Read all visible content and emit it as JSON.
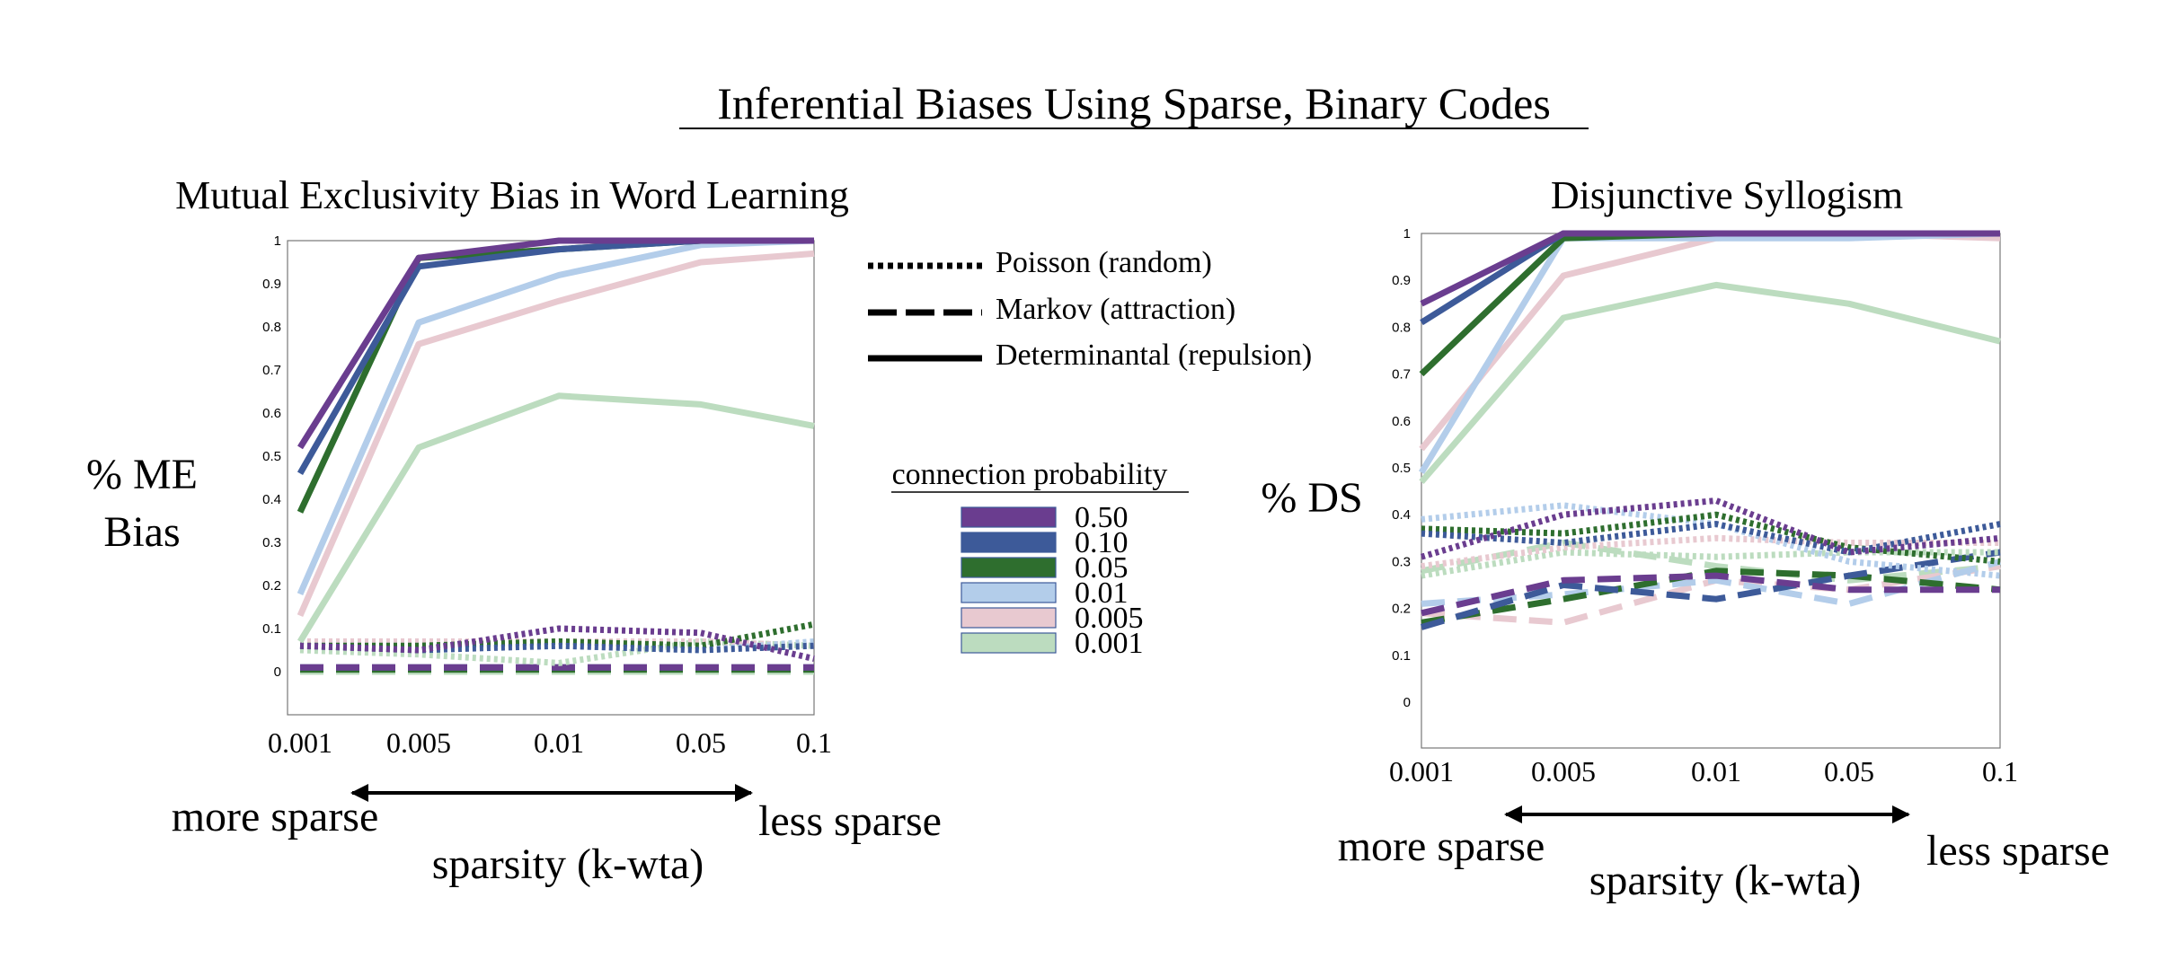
{
  "main_title": "Inferential Biases Using Sparse, Binary Codes",
  "style_legend": [
    {
      "label": "Poisson (random)",
      "dash": "dotted"
    },
    {
      "label": "Markov (attraction)",
      "dash": "dashed"
    },
    {
      "label": "Determinantal (repulsion)",
      "dash": "solid"
    }
  ],
  "color_legend": {
    "title": "connection probability",
    "items": [
      {
        "label": "0.50",
        "color": "#6a3d8f"
      },
      {
        "label": "0.10",
        "color": "#3d5a99"
      },
      {
        "label": "0.05",
        "color": "#2e6e2e"
      },
      {
        "label": "0.01",
        "color": "#b3cdea"
      },
      {
        "label": "0.005",
        "color": "#e8c9d0"
      },
      {
        "label": "0.001",
        "color": "#bcdcbf"
      }
    ]
  },
  "arrow_labels": {
    "left": "more sparse",
    "right": "less sparse"
  },
  "chart_data": [
    {
      "type": "line",
      "title": "Mutual Exclusivity Bias in Word Learning",
      "ylabel_lines": [
        "% ME",
        "Bias"
      ],
      "xlabel": "sparsity (k-wta)",
      "categories": [
        "0.001",
        "0.005",
        "0.01",
        "0.05",
        "0.1"
      ],
      "yticks": [
        "0",
        "0.1",
        "0.2",
        "0.3",
        "0.4",
        "0.5",
        "0.6",
        "0.7",
        "0.8",
        "0.9",
        "1"
      ],
      "ylim": [
        -0.1,
        1
      ],
      "series": [
        {
          "color": "#6a3d8f",
          "dash": "solid",
          "values": [
            0.52,
            0.96,
            1.0,
            1.0,
            1.0
          ]
        },
        {
          "color": "#3d5a99",
          "dash": "solid",
          "values": [
            0.46,
            0.94,
            0.98,
            1.0,
            1.0
          ]
        },
        {
          "color": "#2e6e2e",
          "dash": "solid",
          "values": [
            0.37,
            0.96,
            0.98,
            1.0,
            1.0
          ]
        },
        {
          "color": "#b3cdea",
          "dash": "solid",
          "values": [
            0.18,
            0.81,
            0.92,
            0.99,
            1.0
          ]
        },
        {
          "color": "#e8c9d0",
          "dash": "solid",
          "values": [
            0.13,
            0.76,
            0.86,
            0.95,
            0.97
          ]
        },
        {
          "color": "#bcdcbf",
          "dash": "solid",
          "values": [
            0.07,
            0.52,
            0.64,
            0.62,
            0.57
          ]
        },
        {
          "color": "#6a3d8f",
          "dash": "dotted",
          "values": [
            0.06,
            0.05,
            0.1,
            0.09,
            0.03
          ]
        },
        {
          "color": "#3d5a99",
          "dash": "dotted",
          "values": [
            0.06,
            0.05,
            0.06,
            0.05,
            0.06
          ]
        },
        {
          "color": "#2e6e2e",
          "dash": "dotted",
          "values": [
            0.06,
            0.06,
            0.07,
            0.06,
            0.11
          ]
        },
        {
          "color": "#b3cdea",
          "dash": "dotted",
          "values": [
            0.06,
            0.06,
            0.06,
            0.05,
            0.07
          ]
        },
        {
          "color": "#e8c9d0",
          "dash": "dotted",
          "values": [
            0.07,
            0.07,
            0.07,
            0.07,
            0.06
          ]
        },
        {
          "color": "#bcdcbf",
          "dash": "dotted",
          "values": [
            0.05,
            0.04,
            0.02,
            0.07,
            0.06
          ]
        },
        {
          "color": "#6a3d8f",
          "dash": "dashed",
          "values": [
            0.01,
            0.01,
            0.01,
            0.01,
            0.01
          ]
        },
        {
          "color": "#3d5a99",
          "dash": "dashed",
          "values": [
            0.01,
            0.01,
            0.01,
            0.01,
            0.01
          ]
        },
        {
          "color": "#2e6e2e",
          "dash": "dashed",
          "values": [
            0.005,
            0.005,
            0.005,
            0.005,
            0.005
          ]
        },
        {
          "color": "#bcdcbf",
          "dash": "dashed",
          "values": [
            0.0,
            0.0,
            0.0,
            0.0,
            0.0
          ]
        }
      ]
    },
    {
      "type": "line",
      "title": "Disjunctive Syllogism",
      "ylabel_lines": [
        "% DS"
      ],
      "xlabel": "sparsity (k-wta)",
      "categories": [
        "0.001",
        "0.005",
        "0.01",
        "0.05",
        "0.1"
      ],
      "yticks": [
        "0",
        "0.1",
        "0.2",
        "0.3",
        "0.4",
        "0.5",
        "0.6",
        "0.7",
        "0.8",
        "0.9",
        "1"
      ],
      "ylim": [
        -0.1,
        1
      ],
      "series": [
        {
          "color": "#6a3d8f",
          "dash": "solid",
          "values": [
            0.85,
            1.0,
            1.0,
            1.0,
            1.0
          ]
        },
        {
          "color": "#3d5a99",
          "dash": "solid",
          "values": [
            0.81,
            1.0,
            1.0,
            1.0,
            1.0
          ]
        },
        {
          "color": "#2e6e2e",
          "dash": "solid",
          "values": [
            0.7,
            0.99,
            1.0,
            1.0,
            1.0
          ]
        },
        {
          "color": "#b3cdea",
          "dash": "solid",
          "values": [
            0.49,
            0.99,
            0.99,
            0.99,
            1.0
          ]
        },
        {
          "color": "#e8c9d0",
          "dash": "solid",
          "values": [
            0.54,
            0.91,
            0.99,
            1.0,
            0.99
          ]
        },
        {
          "color": "#bcdcbf",
          "dash": "solid",
          "values": [
            0.47,
            0.82,
            0.89,
            0.85,
            0.77
          ]
        },
        {
          "color": "#6a3d8f",
          "dash": "dotted",
          "values": [
            0.31,
            0.4,
            0.43,
            0.32,
            0.35
          ]
        },
        {
          "color": "#3d5a99",
          "dash": "dotted",
          "values": [
            0.36,
            0.34,
            0.38,
            0.32,
            0.38
          ]
        },
        {
          "color": "#2e6e2e",
          "dash": "dotted",
          "values": [
            0.37,
            0.36,
            0.4,
            0.33,
            0.3
          ]
        },
        {
          "color": "#b3cdea",
          "dash": "dotted",
          "values": [
            0.39,
            0.42,
            0.38,
            0.3,
            0.27
          ]
        },
        {
          "color": "#e8c9d0",
          "dash": "dotted",
          "values": [
            0.29,
            0.33,
            0.35,
            0.34,
            0.34
          ]
        },
        {
          "color": "#bcdcbf",
          "dash": "dotted",
          "values": [
            0.27,
            0.32,
            0.31,
            0.32,
            0.32
          ]
        },
        {
          "color": "#6a3d8f",
          "dash": "dashed",
          "values": [
            0.19,
            0.26,
            0.27,
            0.24,
            0.24
          ]
        },
        {
          "color": "#3d5a99",
          "dash": "dashed",
          "values": [
            0.16,
            0.25,
            0.22,
            0.27,
            0.32
          ]
        },
        {
          "color": "#2e6e2e",
          "dash": "dashed",
          "values": [
            0.17,
            0.22,
            0.28,
            0.27,
            0.24
          ]
        },
        {
          "color": "#b3cdea",
          "dash": "dashed",
          "values": [
            0.21,
            0.23,
            0.26,
            0.21,
            0.3
          ]
        },
        {
          "color": "#e8c9d0",
          "dash": "dashed",
          "values": [
            0.19,
            0.17,
            0.26,
            0.24,
            0.29
          ]
        },
        {
          "color": "#bcdcbf",
          "dash": "dashed",
          "values": [
            0.28,
            0.34,
            0.29,
            0.26,
            0.29
          ]
        }
      ]
    }
  ]
}
